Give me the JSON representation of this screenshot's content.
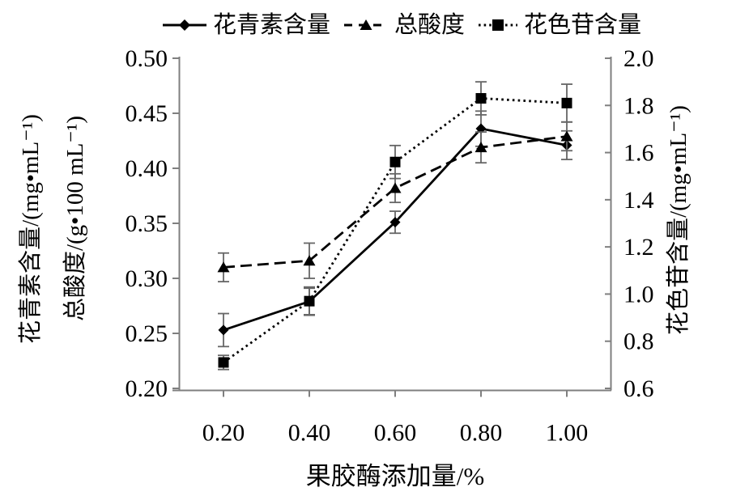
{
  "page": {
    "background": "#ffffff",
    "foreground": "#000000",
    "axis_color": "#7f7f7f",
    "error_bar_color": "#666666"
  },
  "legend": {
    "items": [
      {
        "label": "花青素含量",
        "marker": "diamond",
        "line": "solid"
      },
      {
        "label": "总酸度",
        "marker": "triangle",
        "line": "dashed"
      },
      {
        "label": "花色苷含量",
        "marker": "square",
        "line": "dotted"
      }
    ]
  },
  "axis_titles": {
    "left_outer": "花青素含量/(mg•mL⁻¹)",
    "left_inner": "总酸度/(g•100 mL⁻¹)",
    "right": "花色苷含量/(mg•mL⁻¹)",
    "x": "果胶酶添加量/%"
  },
  "chart_data": {
    "type": "line",
    "title": "",
    "xlabel": "果胶酶添加量/%",
    "x": [
      0.2,
      0.4,
      0.6,
      0.8,
      1.0
    ],
    "x_tick_labels": [
      "0.20",
      "0.40",
      "0.60",
      "0.80",
      "1.00"
    ],
    "x_range": [
      0.2,
      1.0
    ],
    "grid": false,
    "legend_position": "top",
    "left_axis": {
      "label": "花青素含量/(mg•mL⁻¹)；总酸度/(g•100 mL⁻¹)",
      "range": [
        0.2,
        0.5
      ],
      "tick_labels": [
        "0.50",
        "0.45",
        "0.40",
        "0.35",
        "0.30",
        "0.25",
        "0.20"
      ]
    },
    "right_axis": {
      "label": "花色苷含量/(mg•mL⁻¹)",
      "range": [
        0.6,
        2.0
      ],
      "tick_labels": [
        "2.0",
        "1.8",
        "1.6",
        "1.4",
        "1.2",
        "1.0",
        "0.8",
        "0.6"
      ]
    },
    "series": [
      {
        "name": "花青素含量",
        "axis": "left",
        "line": "solid",
        "marker": "diamond",
        "values": [
          0.253,
          0.279,
          0.351,
          0.436,
          0.421
        ],
        "errors": [
          0.015,
          0.012,
          0.01,
          0.016,
          0.013
        ]
      },
      {
        "name": "总酸度",
        "axis": "left",
        "line": "dashed",
        "marker": "triangle",
        "values": [
          0.31,
          0.316,
          0.382,
          0.419,
          0.429
        ],
        "errors": [
          0.013,
          0.016,
          0.013,
          0.014,
          0.013
        ]
      },
      {
        "name": "花色苷含量",
        "axis": "right",
        "line": "dotted",
        "marker": "square",
        "values": [
          0.71,
          0.97,
          1.56,
          1.83,
          1.81
        ],
        "errors": [
          0.03,
          0.06,
          0.07,
          0.07,
          0.08
        ]
      }
    ]
  }
}
